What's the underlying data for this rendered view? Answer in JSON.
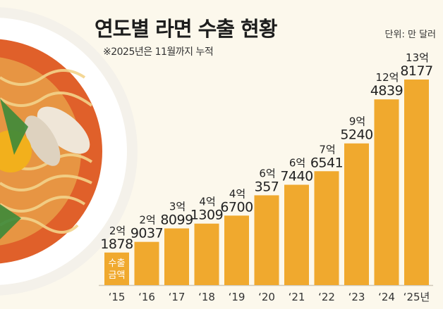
{
  "chart_data": {
    "type": "bar",
    "title": "연도별 라면 수출 현황",
    "subtitle": "※2025년은 11월까지 누적",
    "unit": "단위: 만 달러",
    "series_label": "수출 금액",
    "categories": [
      "‘15",
      "‘16",
      "‘17",
      "‘18",
      "‘19",
      "‘20",
      "‘21",
      "‘22",
      "‘23",
      "‘24",
      "‘25년"
    ],
    "values": [
      21878,
      29037,
      38099,
      41309,
      46700,
      60357,
      67440,
      76541,
      95240,
      124839,
      138177
    ],
    "data_labels": [
      [
        "2억",
        "1878"
      ],
      [
        "2억",
        "9037"
      ],
      [
        "3억",
        "8099"
      ],
      [
        "4억",
        "1309"
      ],
      [
        "4억",
        "6700"
      ],
      [
        "6억",
        "357"
      ],
      [
        "6억",
        "7440"
      ],
      [
        "7억",
        "6541"
      ],
      [
        "9억",
        "5240"
      ],
      [
        "12억",
        "4839"
      ],
      [
        "13억",
        "8177"
      ]
    ],
    "ylim": [
      0,
      138177
    ],
    "grid": false,
    "bar_color": "#f0a92e",
    "label_color": "#222222"
  }
}
